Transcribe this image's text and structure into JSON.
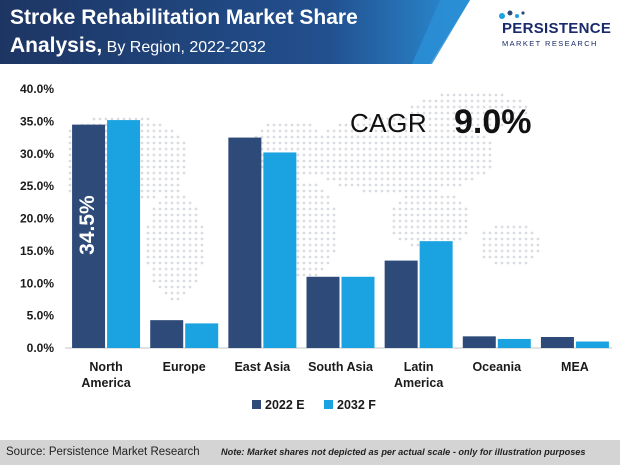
{
  "header": {
    "title_line1": "Stroke Rehabilitation Market Share",
    "title_line2_strong": "Analysis,",
    "title_line2_sub": "By Region, 2022-2032"
  },
  "logo": {
    "name": "PERSISTENCE",
    "tagline": "MARKET RESEARCH"
  },
  "cagr": {
    "label": "CAGR",
    "value": "9.0%"
  },
  "chart_data": {
    "type": "bar",
    "categories": [
      [
        "North",
        "America"
      ],
      [
        "Europe"
      ],
      [
        "East Asia"
      ],
      [
        "South Asia"
      ],
      [
        "Latin",
        "America"
      ],
      [
        "Oceania"
      ],
      [
        "MEA"
      ]
    ],
    "series": [
      {
        "name": "2022 E",
        "values": [
          34.5,
          4.3,
          32.5,
          11.0,
          13.5,
          1.8,
          1.7
        ],
        "color": "#2e4a79"
      },
      {
        "name": "2032 F",
        "values": [
          35.2,
          3.8,
          30.2,
          11.0,
          16.5,
          1.4,
          1.0
        ],
        "color": "#1aa3e0"
      }
    ],
    "annotations": [
      {
        "text": "34.5%",
        "category_index": 0,
        "series_index": 0
      }
    ],
    "yticks": [
      "0.0%",
      "5.0%",
      "10.0%",
      "15.0%",
      "20.0%",
      "25.0%",
      "30.0%",
      "35.0%",
      "40.0%"
    ],
    "ylim": [
      0,
      40
    ],
    "legend_position": "bottom"
  },
  "footer": {
    "source": "Source: Persistence Market Research",
    "note": "Note: Market shares not depicted as per actual scale - only for illustration purposes"
  },
  "colors": {
    "banner_dark": "#1d3563",
    "banner_light": "#2a8fd6",
    "footer_bg": "#d4d4d4"
  }
}
